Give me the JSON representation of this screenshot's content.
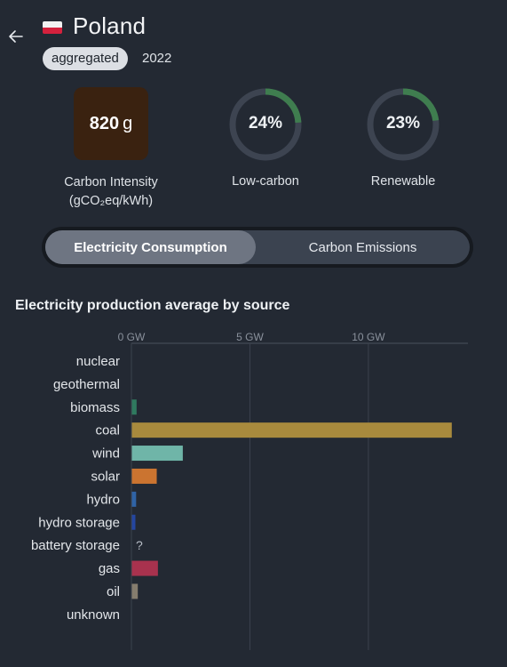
{
  "header": {
    "country": "Poland",
    "badge": "aggregated",
    "year": "2022"
  },
  "metrics": {
    "carbon_intensity_value": "820",
    "carbon_intensity_unit": "g",
    "carbon_intensity_color": "#3a2210",
    "carbon_intensity_label": "Carbon Intensity (gCO₂eq/kWh)",
    "low_carbon": {
      "text": "24%",
      "fraction": 0.24,
      "label": "Low-carbon"
    },
    "renewable": {
      "text": "23%",
      "fraction": 0.23,
      "label": "Renewable"
    }
  },
  "toggle": {
    "active": "Electricity Consumption",
    "inactive": "Carbon Emissions"
  },
  "chart_title": "Electricity production average by source",
  "chart_data": {
    "type": "bar",
    "orientation": "horizontal",
    "x_unit": "GW",
    "xlim": [
      0,
      14.2
    ],
    "ticks": [
      {
        "value": 0,
        "label": "0 GW"
      },
      {
        "value": 5,
        "label": "5 GW"
      },
      {
        "value": 10,
        "label": "10 GW"
      }
    ],
    "categories": [
      "nuclear",
      "geothermal",
      "biomass",
      "coal",
      "wind",
      "solar",
      "hydro",
      "hydro storage",
      "battery storage",
      "gas",
      "oil",
      "unknown"
    ],
    "values": [
      0,
      0,
      0.2,
      13.5,
      2.15,
      1.05,
      0.18,
      0.15,
      null,
      1.1,
      0.25,
      0
    ],
    "missing_label": "?",
    "colors": [
      "#d0b050",
      "#b8845a",
      "#2f7a5f",
      "#a88a3d",
      "#6fb5a8",
      "#cb7430",
      "#2f63a6",
      "#2446a0",
      "#4aa3a0",
      "#a8324e",
      "#857d6e",
      "#8a8f96"
    ],
    "grid": true
  }
}
